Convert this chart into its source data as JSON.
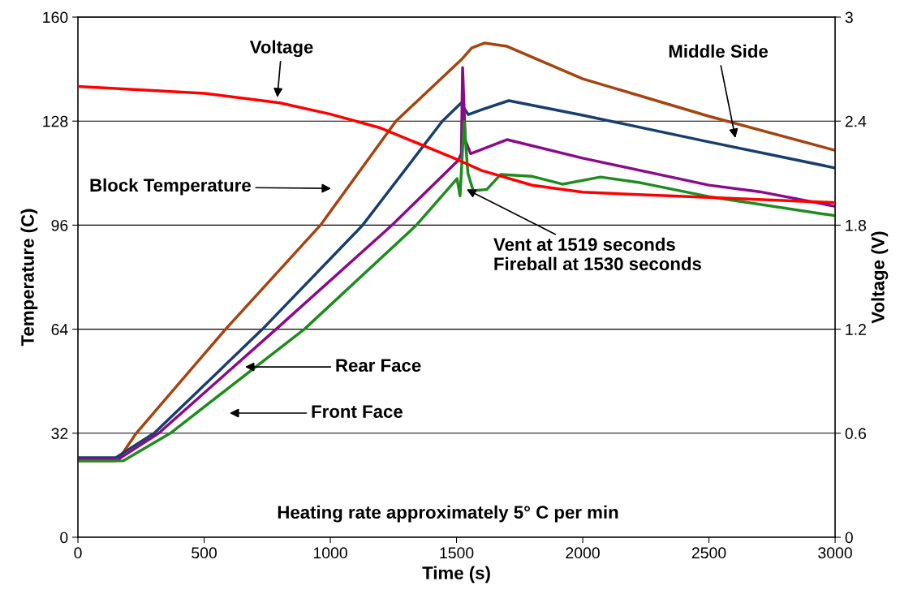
{
  "chart_data": {
    "type": "line",
    "xlabel": "Time (s)",
    "ylabel": "Temperature (C)",
    "y2label": "Voltage (V)",
    "xlim": [
      0,
      3000
    ],
    "xticks": [
      0,
      500,
      1000,
      1500,
      2000,
      2500,
      3000
    ],
    "ylim": [
      0,
      160
    ],
    "yticks": [
      0,
      32,
      64,
      96,
      128,
      160
    ],
    "y2lim": [
      0,
      3
    ],
    "y2ticks": [
      0,
      0.6,
      1.2,
      1.8,
      2.4,
      3
    ],
    "grid": "y",
    "marker": "none",
    "line_style": "solid",
    "series": [
      {
        "color": "#a5440f",
        "x": [
          0,
          150,
          161,
          231,
          585,
          961,
          1260,
          1524,
          1560,
          1610,
          1700,
          2000,
          2500,
          3000
        ],
        "values": [
          23.5,
          23.5,
          24,
          32,
          64,
          96,
          128,
          147.3,
          150.5,
          152,
          151,
          141,
          129.5,
          119
        ]
      },
      {
        "color": "#173f6e",
        "x": [
          0,
          150,
          170,
          302,
          731,
          1128,
          1444,
          1517,
          1547,
          1600,
          1707,
          2000,
          2500,
          3000
        ],
        "values": [
          24.5,
          24.5,
          25.5,
          32,
          64,
          96,
          128,
          133.5,
          130,
          131.5,
          134.3,
          129.8,
          121.6,
          113.6
        ]
      },
      {
        "color": "#8b0a8b",
        "x": [
          0,
          160,
          180,
          320,
          785,
          1244,
          1508,
          1519,
          1524,
          1535,
          1556,
          1700,
          2000,
          2500,
          2700,
          3000
        ],
        "values": [
          24,
          24,
          25,
          32,
          64,
          96,
          116,
          118,
          144.5,
          122,
          118,
          122.3,
          116.6,
          108.3,
          106.3,
          101.8
        ]
      },
      {
        "color": "#1e8c1e",
        "x": [
          0,
          180,
          366,
          897,
          1341,
          1502,
          1514,
          1530,
          1545,
          1566,
          1620,
          1675,
          1800,
          1920,
          2070,
          2231,
          2498,
          3000
        ],
        "values": [
          23.5,
          23.5,
          32,
          64,
          96,
          110.3,
          105,
          128,
          112,
          106.6,
          107,
          111.6,
          111,
          108.6,
          110.8,
          109,
          104.8,
          98.9
        ]
      },
      {
        "color": "#ff0000",
        "axis": "y2",
        "x": [
          0,
          500,
          800,
          1000,
          1200,
          1400,
          1500,
          1600,
          1800,
          2000,
          2500,
          3000
        ],
        "values": [
          2.6,
          2.56,
          2.505,
          2.44,
          2.36,
          2.24,
          2.18,
          2.115,
          2.03,
          1.99,
          1.96,
          1.93
        ]
      }
    ],
    "annotations": [
      {
        "text": "Voltage",
        "x": 790,
        "y": 135.3
      },
      "Block Temperature",
      "Middle Side",
      "Rear Face",
      "Front Face",
      {
        "text": "Vent at 1519 seconds\nFireball at 1530 seconds",
        "x": 1540,
        "y": 107
      },
      "Heating rate approximately 5° C per min"
    ]
  }
}
